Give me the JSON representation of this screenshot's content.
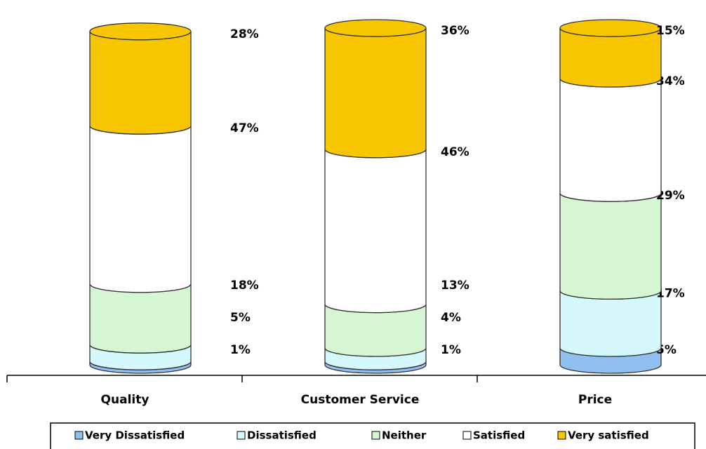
{
  "chart_data": {
    "type": "stacked_cylinder",
    "categories": [
      "Quality",
      "Customer Service",
      "Price"
    ],
    "series": [
      {
        "name": "Very Dissatisfied",
        "color": "#8fc0f0",
        "values": [
          1,
          1,
          5
        ],
        "value_labels": [
          "1%",
          "1%",
          "5%"
        ]
      },
      {
        "name": "Dissatisfied",
        "color": "#d4f8fc",
        "values": [
          5,
          4,
          17
        ],
        "value_labels": [
          "5%",
          "4%",
          "17%"
        ]
      },
      {
        "name": "Neither",
        "color": "#d6f5d2",
        "values": [
          18,
          13,
          29
        ],
        "value_labels": [
          "18%",
          "13%",
          "29%"
        ]
      },
      {
        "name": "Satisfied",
        "color": "#ffffff",
        "values": [
          47,
          46,
          34
        ],
        "value_labels": [
          "47%",
          "46%",
          "34%"
        ]
      },
      {
        "name": "Very satisfied",
        "color": "#f7c600",
        "values": [
          28,
          36,
          15
        ],
        "value_labels": [
          "28%",
          "36%",
          "15%"
        ]
      }
    ],
    "legend": "bottom"
  }
}
